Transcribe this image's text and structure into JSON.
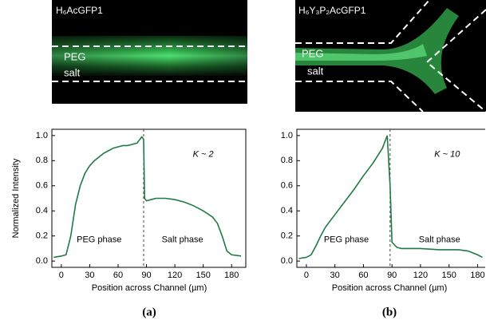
{
  "chart_data": [
    {
      "type": "line",
      "panel_label": "(a)",
      "image_title": "H₆AcGFP1",
      "image_labels": [
        "PEG",
        "salt"
      ],
      "xlabel": "Position across Channel (µm)",
      "ylabel": "Normalized Intensity",
      "xlim": [
        -10,
        195
      ],
      "ylim": [
        -0.05,
        1.05
      ],
      "xticks": [
        0,
        30,
        60,
        90,
        120,
        150,
        180
      ],
      "yticks": [
        {
          "value": 0,
          "label": "0.0"
        },
        0.2,
        0.4,
        0.6,
        0.8,
        {
          "value": 1,
          "label": "1.0"
        }
      ],
      "annotations": [
        "K ~ 2",
        "PEG phase",
        "Salt phase"
      ],
      "divider_x": 87,
      "x": [
        -8,
        0,
        5,
        10,
        15,
        20,
        25,
        30,
        35,
        40,
        45,
        50,
        55,
        60,
        65,
        70,
        75,
        80,
        85,
        87,
        88,
        90,
        95,
        100,
        110,
        120,
        130,
        140,
        150,
        160,
        165,
        170,
        175,
        180,
        190
      ],
      "series": [
        {
          "color": "#1f7a45",
          "values": [
            0.03,
            0.04,
            0.05,
            0.2,
            0.45,
            0.6,
            0.7,
            0.76,
            0.8,
            0.83,
            0.86,
            0.88,
            0.9,
            0.91,
            0.92,
            0.92,
            0.93,
            0.94,
            0.99,
            0.97,
            0.5,
            0.48,
            0.49,
            0.5,
            0.5,
            0.49,
            0.47,
            0.44,
            0.4,
            0.35,
            0.3,
            0.2,
            0.08,
            0.05,
            0.04
          ]
        }
      ]
    },
    {
      "type": "line",
      "panel_label": "(b)",
      "image_title": "H₆Y₃P₂AcGFP1",
      "image_labels": [
        "PEG",
        "salt"
      ],
      "xlabel": "Position across Channel (µm)",
      "xlim": [
        -10,
        188
      ],
      "ylim": [
        -0.05,
        1.05
      ],
      "xticks": [
        0,
        30,
        60,
        90,
        120,
        150,
        180
      ],
      "yticks": [
        {
          "value": 0,
          "label": "0.0"
        },
        0.2,
        0.4,
        0.6,
        0.8,
        {
          "value": 1,
          "label": "1.0"
        }
      ],
      "annotations": [
        "K ~ 10",
        "PEG phase",
        "Salt phase"
      ],
      "divider_x": 88,
      "x": [
        -8,
        0,
        5,
        10,
        15,
        20,
        30,
        40,
        50,
        60,
        70,
        80,
        85,
        88,
        90,
        95,
        100,
        120,
        140,
        160,
        170,
        180,
        185
      ],
      "series": [
        {
          "color": "#1f7a45",
          "values": [
            0.02,
            0.03,
            0.05,
            0.12,
            0.2,
            0.27,
            0.37,
            0.47,
            0.57,
            0.68,
            0.78,
            0.9,
            1.0,
            0.6,
            0.15,
            0.11,
            0.1,
            0.1,
            0.09,
            0.09,
            0.08,
            0.05,
            0.03
          ]
        }
      ]
    }
  ]
}
